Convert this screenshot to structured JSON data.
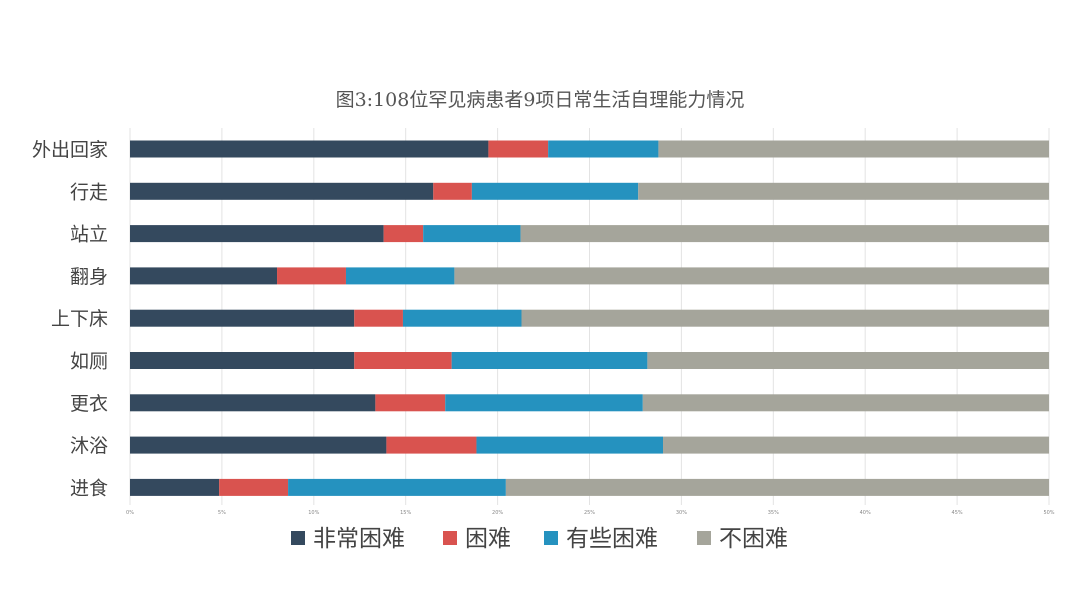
{
  "chart_data": {
    "type": "bar",
    "orientation": "horizontal",
    "stacked": true,
    "title": "图3:108位罕见病患者9项日常生活自理能力情况",
    "categories": [
      "外出回家",
      "行走",
      "站立",
      "翻身",
      "上下床",
      "如厕",
      "更衣",
      "沐浴",
      "进食"
    ],
    "series": [
      {
        "name": "非常困难",
        "color": "#34495e",
        "values": [
          39,
          33,
          27.6,
          16,
          24.4,
          24.4,
          26.7,
          27.9,
          9.7
        ]
      },
      {
        "name": "困难",
        "color": "#d9534f",
        "values": [
          6.5,
          4.2,
          4.3,
          7.5,
          5.3,
          10.6,
          7.6,
          9.8,
          7.5
        ]
      },
      {
        "name": "有些困难",
        "color": "#2592bf",
        "values": [
          12,
          18.1,
          10.6,
          11.8,
          12.9,
          21.3,
          21.5,
          20.3,
          23.7
        ]
      },
      {
        "name": "不困难",
        "color": "#a5a59b",
        "values": [
          42.5,
          44.7,
          57.5,
          64.7,
          57.4,
          43.7,
          44.2,
          42,
          59.1
        ]
      }
    ],
    "x_ticks": [
      "0%",
      "5%",
      "10%",
      "15%",
      "20%",
      "25%",
      "30%",
      "35%",
      "40%",
      "45%",
      "50%"
    ],
    "xlim": [
      0,
      100
    ],
    "grid": true,
    "legend": "bottom"
  }
}
